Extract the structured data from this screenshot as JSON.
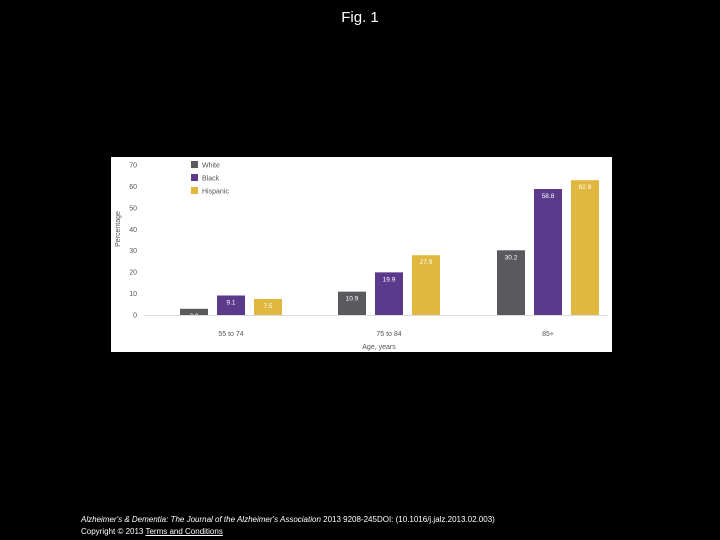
{
  "figure": {
    "title": "Fig. 1"
  },
  "caption": {
    "journal": "Alzheimer's & Dementia: The Journal of the Alzheimer's Association",
    "citation": " 2013 9208-245DOI: (10.1016/j.jalz.2013.02.003) ",
    "copyright": "Copyright © 2013 ",
    "terms_link": "Terms and Conditions"
  },
  "chart_data": {
    "type": "bar",
    "title": "",
    "xlabel": "Age, years",
    "ylabel": "Percentage",
    "ylim": [
      0,
      70
    ],
    "yticks": [
      0,
      10,
      20,
      30,
      40,
      50,
      60,
      70
    ],
    "categories": [
      "55 to 74",
      "75 to 84",
      "85+"
    ],
    "series": [
      {
        "name": "White",
        "color": "#5a5a5e",
        "values": [
          2.9,
          10.9,
          30.2
        ],
        "labels": [
          "2.9",
          "10.9",
          "30.2"
        ]
      },
      {
        "name": "Black",
        "color": "#5b3a8c",
        "values": [
          9.1,
          19.9,
          58.8
        ],
        "labels": [
          "9.1",
          "19.9",
          "58.8"
        ]
      },
      {
        "name": "Hispanic",
        "color": "#e0b840",
        "values": [
          7.5,
          27.9,
          62.9
        ],
        "labels": [
          "7.5",
          "27.9",
          "62.9"
        ]
      }
    ],
    "legend": "top-left",
    "grid": false
  }
}
